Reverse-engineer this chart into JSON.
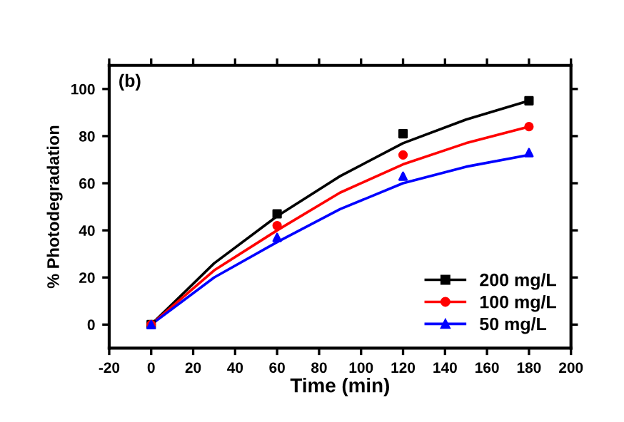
{
  "chart_data": {
    "type": "scatter",
    "xlabel": "Time (min)",
    "ylabel": "% Photodegradation",
    "annotations": [
      "(b)"
    ],
    "x": [
      0,
      60,
      120,
      180
    ],
    "series": [
      {
        "name": "200 mg/L",
        "color": "#000000",
        "marker": "square",
        "values": [
          0,
          47,
          81,
          95
        ]
      },
      {
        "name": "100 mg/L",
        "color": "#ff0000",
        "marker": "circle",
        "values": [
          0,
          42,
          72,
          84
        ]
      },
      {
        "name": "50 mg/L",
        "color": "#0000ff",
        "marker": "triangle",
        "values": [
          0,
          37,
          63,
          73
        ]
      },
      {
        "type": "line",
        "color": "#000000",
        "x": [
          0,
          30,
          60,
          90,
          120,
          150,
          180
        ],
        "values": [
          0,
          26,
          46,
          63,
          77,
          87,
          95
        ]
      },
      {
        "type": "line",
        "color": "#ff0000",
        "x": [
          0,
          30,
          60,
          90,
          120,
          150,
          180
        ],
        "values": [
          0,
          23,
          40,
          56,
          68,
          77,
          84
        ]
      },
      {
        "type": "line",
        "color": "#0000ff",
        "x": [
          0,
          30,
          60,
          90,
          120,
          150,
          180
        ],
        "values": [
          0,
          20,
          35,
          49,
          60,
          67,
          72
        ]
      }
    ],
    "xlim": [
      -20,
      200
    ],
    "xticks": [
      -20,
      0,
      20,
      40,
      60,
      80,
      100,
      120,
      140,
      160,
      180,
      200
    ],
    "ylim": [
      -10,
      110
    ],
    "yticks": [
      0,
      20,
      40,
      60,
      80,
      100
    ],
    "grid": false,
    "legend": "bottom right"
  }
}
